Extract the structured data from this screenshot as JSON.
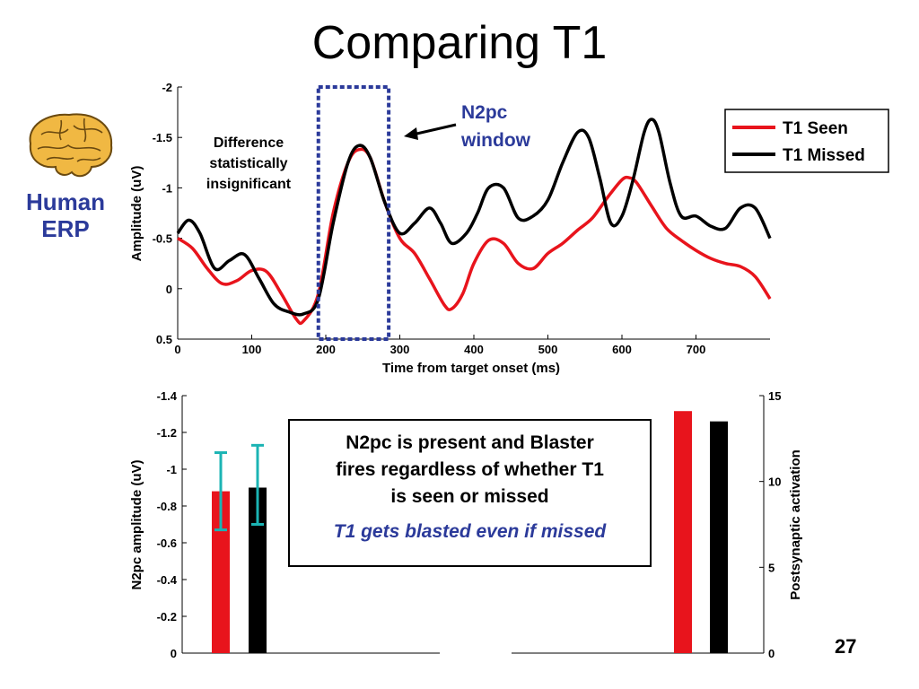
{
  "slide": {
    "title": "Comparing T1",
    "side_label_line1": "Human",
    "side_label_line2": "ERP",
    "page_number": "27",
    "brain_icon": "brain-icon"
  },
  "annotations": {
    "difference_line1": "Difference",
    "difference_line2": "statistically",
    "difference_line3": "insignificant",
    "n2pc_line1": "N2pc",
    "n2pc_line2": "window"
  },
  "message": {
    "main": "N2pc is present and Blaster fires regardless of whether T1 is seen or missed",
    "main_line1": "N2pc is present and Blaster",
    "main_line2": "fires regardless of whether T1",
    "main_line3": "is seen or missed",
    "emphasis": "T1 gets blasted even if missed"
  },
  "colors": {
    "seen": "#e8141c",
    "missed": "#000000",
    "window": "#2b3a9a",
    "errorbar": "#1bb4b4",
    "text_blue": "#2b3a9a"
  },
  "chart_data": [
    {
      "type": "line",
      "xlabel": "Time from target onset (ms)",
      "ylabel": "Amplitude (uV)",
      "xlim": [
        0,
        800
      ],
      "ylim": [
        0.5,
        -2
      ],
      "y_inverted": true,
      "x_ticks": [
        0,
        100,
        200,
        300,
        400,
        500,
        600,
        700
      ],
      "y_ticks": [
        -2,
        -1.5,
        -1,
        -0.5,
        0,
        0.5
      ],
      "y_tick_labels": [
        "-2",
        "-1.5",
        "-1",
        "-0.5",
        "0",
        "0.5"
      ],
      "legend": "top-right",
      "highlight_window": [
        190,
        285
      ],
      "series": [
        {
          "name": "T1 Seen",
          "color": "#e8141c",
          "x": [
            0,
            20,
            40,
            60,
            80,
            100,
            120,
            140,
            160,
            170,
            190,
            210,
            230,
            245,
            260,
            280,
            300,
            320,
            340,
            360,
            370,
            385,
            400,
            420,
            440,
            460,
            480,
            500,
            520,
            540,
            560,
            580,
            600,
            610,
            620,
            640,
            660,
            680,
            700,
            720,
            740,
            760,
            780,
            800
          ],
          "y": [
            -0.5,
            -0.4,
            -0.2,
            -0.05,
            -0.08,
            -0.18,
            -0.17,
            0.05,
            0.3,
            0.32,
            0.05,
            -0.75,
            -1.25,
            -1.38,
            -1.3,
            -0.85,
            -0.5,
            -0.35,
            -0.1,
            0.16,
            0.2,
            0.05,
            -0.25,
            -0.48,
            -0.45,
            -0.25,
            -0.2,
            -0.35,
            -0.45,
            -0.58,
            -0.7,
            -0.9,
            -1.08,
            -1.1,
            -1.05,
            -0.82,
            -0.6,
            -0.48,
            -0.38,
            -0.3,
            -0.25,
            -0.22,
            -0.12,
            0.1
          ]
        },
        {
          "name": "T1 Missed",
          "color": "#000000",
          "x": [
            0,
            15,
            30,
            50,
            70,
            90,
            110,
            130,
            150,
            170,
            190,
            210,
            230,
            245,
            260,
            280,
            300,
            320,
            340,
            355,
            370,
            390,
            405,
            420,
            440,
            460,
            480,
            500,
            520,
            540,
            555,
            570,
            585,
            600,
            615,
            630,
            640,
            650,
            665,
            680,
            700,
            720,
            740,
            760,
            780,
            800
          ],
          "y": [
            -0.55,
            -0.68,
            -0.55,
            -0.2,
            -0.28,
            -0.34,
            -0.1,
            0.15,
            0.23,
            0.25,
            0.1,
            -0.65,
            -1.25,
            -1.42,
            -1.3,
            -0.85,
            -0.55,
            -0.65,
            -0.8,
            -0.65,
            -0.45,
            -0.55,
            -0.75,
            -1.0,
            -1.0,
            -0.7,
            -0.72,
            -0.88,
            -1.25,
            -1.55,
            -1.5,
            -1.1,
            -0.65,
            -0.72,
            -1.08,
            -1.55,
            -1.68,
            -1.55,
            -1.05,
            -0.72,
            -0.72,
            -0.62,
            -0.6,
            -0.8,
            -0.8,
            -0.5
          ]
        }
      ]
    },
    {
      "type": "bar",
      "ylabel": "N2pc amplitude (uV)",
      "ylim": [
        0,
        -1.4
      ],
      "y_inverted": true,
      "y_ticks": [
        -1.4,
        -1.2,
        -1,
        -0.8,
        -0.6,
        -0.4,
        -0.2,
        0
      ],
      "y_tick_labels": [
        "-1.4",
        "-1.2",
        "-1",
        "-0.8",
        "-0.6",
        "-0.4",
        "-0.2",
        "0"
      ],
      "series": [
        {
          "name": "T1 Seen",
          "color": "#e8141c",
          "value": -0.88,
          "error_low": -0.67,
          "error_high": -1.09
        },
        {
          "name": "T1 Missed",
          "color": "#000000",
          "value": -0.9,
          "error_low": -0.7,
          "error_high": -1.13
        }
      ]
    },
    {
      "type": "bar",
      "ylabel": "Postsynaptic activation",
      "ylim": [
        0,
        15
      ],
      "y_ticks": [
        0,
        5,
        10,
        15
      ],
      "y_tick_labels": [
        "0",
        "5",
        "10",
        "15"
      ],
      "series": [
        {
          "name": "T1 Seen",
          "color": "#e8141c",
          "value": 14.1
        },
        {
          "name": "T1 Missed",
          "color": "#000000",
          "value": 13.5
        }
      ]
    }
  ]
}
